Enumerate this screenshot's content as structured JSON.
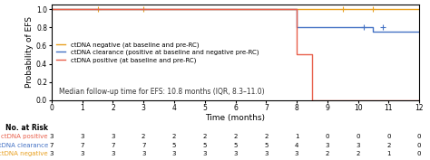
{
  "chart_data": {
    "type": "kaplan_meier",
    "ylabel": "Probability of EFS",
    "xlabel": "Time (months)",
    "xlim": [
      0,
      12
    ],
    "ylim": [
      0,
      1.05
    ],
    "xticks": [
      0,
      1,
      2,
      3,
      4,
      5,
      6,
      7,
      8,
      9,
      10,
      11,
      12
    ],
    "yticks": [
      {
        "value": 0.0,
        "label": "0.0"
      },
      0.2,
      0.4,
      0.6,
      0.8,
      {
        "value": 1.0,
        "label": "1.0"
      }
    ],
    "grid": false,
    "legend": "center left",
    "annotation": "Median follow-up time for EFS: 10.8 months (IQR, 8.3–11.0)",
    "series": [
      {
        "name": "ctDNA negative (at baseline and pre-RC)",
        "color": "#e8a020",
        "steps_x": [
          0,
          1.5,
          1.5,
          3.0,
          3.0,
          8.0,
          8.0,
          9.5,
          9.5,
          12
        ],
        "steps_y": [
          1.0,
          1.0,
          1.0,
          1.0,
          1.0,
          1.0,
          1.0,
          1.0,
          1.0,
          1.0
        ],
        "censors_x": [
          1.5,
          3.0,
          9.5,
          10.5
        ],
        "censors_y": [
          1.0,
          1.0,
          1.0,
          1.0
        ]
      },
      {
        "name": "ctDNA clearance (positive at baseline and negative pre-RC)",
        "color": "#4472c4",
        "steps_x": [
          0,
          8.0,
          8.0,
          10.5,
          10.5,
          12
        ],
        "steps_y": [
          1.0,
          1.0,
          0.8,
          0.8,
          0.75,
          0.75
        ],
        "censors_x": [
          10.2,
          10.8
        ],
        "censors_y": [
          0.8,
          0.8
        ]
      },
      {
        "name": "ctDNA positive (at baseline and pre-RC)",
        "color": "#e8604c",
        "steps_x": [
          0,
          8.0,
          8.0,
          8.5,
          8.5,
          12
        ],
        "steps_y": [
          1.0,
          1.0,
          0.5,
          0.5,
          0.0,
          0.0
        ]
      }
    ],
    "risk_table": {
      "title": "No. at Risk",
      "time_points": [
        0,
        1,
        2,
        3,
        4,
        5,
        6,
        7,
        8,
        9,
        10,
        11,
        12
      ],
      "rows": [
        {
          "name": "ctDNA positive",
          "color": "#e8604c",
          "values": [
            3,
            3,
            3,
            2,
            2,
            2,
            2,
            2,
            1,
            0,
            0,
            0,
            0
          ]
        },
        {
          "name": "ctDNA clearance",
          "color": "#4472c4",
          "values": [
            7,
            7,
            7,
            7,
            5,
            5,
            5,
            5,
            4,
            3,
            3,
            2,
            0
          ]
        },
        {
          "name": "ctDNA negative",
          "color": "#e8a020",
          "values": [
            3,
            3,
            3,
            3,
            3,
            3,
            3,
            3,
            3,
            2,
            2,
            1,
            0
          ]
        }
      ]
    }
  }
}
